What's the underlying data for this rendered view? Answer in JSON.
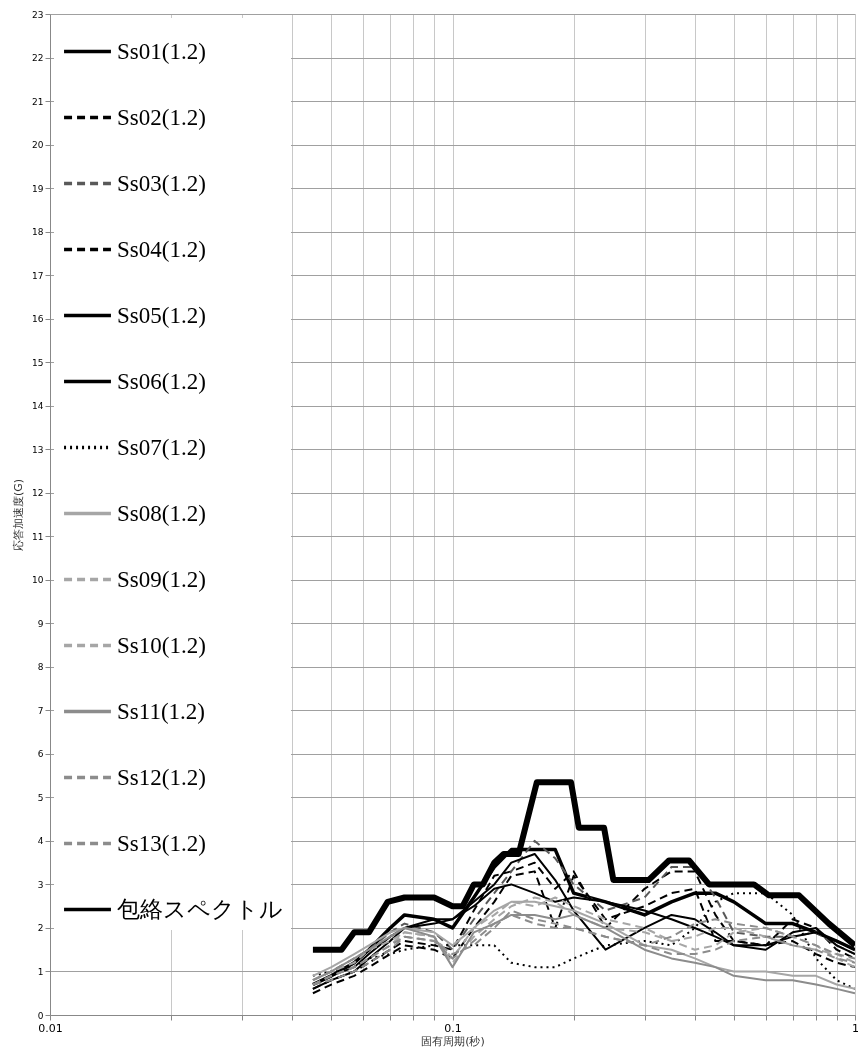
{
  "chart_data": {
    "type": "line",
    "xlabel": "固有周期(秒)",
    "ylabel": "応答加速度(G)",
    "log": "x",
    "grid": true,
    "legend": "top left",
    "xlim": [
      0.01,
      1
    ],
    "xticks": [
      0.01,
      {
        "value": 0.02,
        "label": null
      },
      {
        "value": 0.03,
        "label": null
      },
      {
        "value": 0.04,
        "label": null
      },
      {
        "value": 0.05,
        "label": null
      },
      {
        "value": 0.06,
        "label": null
      },
      {
        "value": 0.07,
        "label": null
      },
      {
        "value": 0.08,
        "label": null
      },
      {
        "value": 0.09,
        "label": null
      },
      0.1,
      {
        "value": 0.2,
        "label": null
      },
      {
        "value": 0.3,
        "label": null
      },
      {
        "value": 0.4,
        "label": null
      },
      {
        "value": 0.5,
        "label": null
      },
      {
        "value": 0.6,
        "label": null
      },
      {
        "value": 0.7,
        "label": null
      },
      {
        "value": 0.8,
        "label": null
      },
      {
        "value": 0.9,
        "label": null
      },
      1
    ],
    "ylim": [
      0,
      23
    ],
    "yticks": [
      0,
      1,
      2,
      3,
      4,
      5,
      6,
      7,
      8,
      9,
      10,
      11,
      12,
      13,
      14,
      15,
      16,
      17,
      18,
      19,
      20,
      21,
      22,
      23
    ],
    "x": [
      0.045,
      0.05,
      0.057,
      0.062,
      0.07,
      0.076,
      0.09,
      0.1,
      0.113,
      0.127,
      0.14,
      0.16,
      0.18,
      0.2,
      0.24,
      0.3,
      0.35,
      0.4,
      0.45,
      0.5,
      0.6,
      0.7,
      0.8,
      0.9,
      1.0
    ],
    "series": [
      {
        "name": "Ss01(1.2)",
        "color": "#000000",
        "line_style": "solid",
        "values": [
          0.7,
          0.9,
          1.2,
          1.5,
          2.0,
          2.3,
          2.2,
          2.0,
          2.7,
          3.4,
          3.8,
          3.8,
          3.8,
          2.8,
          2.6,
          2.3,
          2.6,
          2.8,
          2.8,
          2.6,
          2.1,
          2.1,
          1.9,
          1.7,
          1.5
        ]
      },
      {
        "name": "Ss02(1.2)",
        "color": "#000000",
        "line_style": "dashed",
        "values": [
          0.6,
          0.8,
          1.0,
          1.2,
          1.5,
          1.7,
          1.6,
          1.5,
          2.4,
          3.2,
          3.3,
          3.5,
          2.9,
          3.3,
          2.0,
          2.9,
          3.3,
          3.3,
          2.3,
          1.7,
          1.6,
          2.2,
          2.0,
          1.5,
          1.3
        ]
      },
      {
        "name": "Ss03(1.2)",
        "color": "#595959",
        "line_style": "dashed",
        "values": [
          0.8,
          1.0,
          1.3,
          1.5,
          1.9,
          2.1,
          1.9,
          1.5,
          2.2,
          2.8,
          3.3,
          4.0,
          3.6,
          3.0,
          2.4,
          2.7,
          3.4,
          3.4,
          2.7,
          1.9,
          1.8,
          1.8,
          1.9,
          1.6,
          1.4
        ]
      },
      {
        "name": "Ss04(1.2)",
        "color": "#000000",
        "line_style": "dashed",
        "values": [
          0.5,
          0.7,
          0.9,
          1.1,
          1.4,
          1.6,
          1.5,
          1.3,
          2.0,
          2.6,
          3.2,
          3.3,
          2.0,
          3.2,
          2.2,
          2.5,
          2.8,
          2.9,
          1.7,
          1.7,
          1.6,
          1.7,
          1.4,
          1.2,
          1.1
        ]
      },
      {
        "name": "Ss05(1.2)",
        "color": "#000000",
        "line_style": "solid",
        "values": [
          0.7,
          0.9,
          1.1,
          1.4,
          1.8,
          2.0,
          2.2,
          2.2,
          2.6,
          3.0,
          3.5,
          3.7,
          3.1,
          2.4,
          1.5,
          2.0,
          2.3,
          2.2,
          1.9,
          1.6,
          1.5,
          1.9,
          2.0,
          1.6,
          1.4
        ]
      },
      {
        "name": "Ss06(1.2)",
        "color": "#000000",
        "line_style": "solid",
        "values": [
          0.6,
          0.8,
          1.0,
          1.3,
          1.7,
          2.0,
          2.1,
          2.2,
          2.5,
          2.9,
          3.0,
          2.8,
          2.6,
          2.7,
          2.6,
          2.4,
          2.2,
          2.0,
          1.8,
          1.6,
          1.6,
          1.8,
          1.9,
          1.7,
          1.5
        ]
      },
      {
        "name": "Ss07(1.2)",
        "color": "#000000",
        "line_style": "dotted",
        "values": [
          0.9,
          1.0,
          1.1,
          1.3,
          1.4,
          1.5,
          1.6,
          1.6,
          1.6,
          1.6,
          1.2,
          1.1,
          1.1,
          1.3,
          1.6,
          1.7,
          1.6,
          2.0,
          2.6,
          2.8,
          2.8,
          2.3,
          1.3,
          0.8,
          0.6
        ]
      },
      {
        "name": "Ss08(1.2)",
        "color": "#a6a6a6",
        "line_style": "solid",
        "values": [
          0.9,
          1.1,
          1.4,
          1.6,
          1.9,
          2.0,
          1.9,
          1.6,
          2.0,
          2.4,
          2.6,
          2.6,
          2.5,
          2.4,
          2.1,
          1.6,
          1.5,
          1.3,
          1.1,
          1.0,
          1.0,
          0.9,
          0.9,
          0.7,
          0.6
        ]
      },
      {
        "name": "Ss09(1.2)",
        "color": "#a6a6a6",
        "line_style": "dashed",
        "values": [
          0.8,
          1.0,
          1.2,
          1.5,
          1.7,
          1.9,
          1.8,
          1.3,
          2.0,
          2.3,
          2.6,
          2.5,
          2.7,
          2.5,
          2.2,
          2.0,
          1.7,
          1.8,
          2.0,
          2.0,
          1.8,
          1.6,
          1.5,
          1.4,
          1.2
        ]
      },
      {
        "name": "Ss10(1.2)",
        "color": "#a6a6a6",
        "line_style": "dashed",
        "values": [
          0.7,
          0.9,
          1.1,
          1.3,
          1.6,
          1.9,
          1.8,
          1.2,
          1.8,
          2.2,
          2.5,
          2.7,
          2.6,
          2.3,
          2.0,
          1.9,
          1.7,
          1.5,
          1.6,
          1.9,
          2.0,
          1.8,
          1.6,
          1.3,
          1.1
        ]
      },
      {
        "name": "Ss11(1.2)",
        "color": "#8c8c8c",
        "line_style": "solid",
        "values": [
          0.8,
          1.0,
          1.3,
          1.5,
          1.8,
          2.0,
          1.8,
          1.1,
          1.9,
          2.1,
          2.3,
          2.3,
          2.2,
          2.3,
          2.0,
          1.5,
          1.3,
          1.2,
          1.1,
          0.9,
          0.8,
          0.8,
          0.7,
          0.6,
          0.5
        ]
      },
      {
        "name": "Ss12(1.2)",
        "color": "#8c8c8c",
        "line_style": "dashed",
        "values": [
          0.7,
          0.8,
          1.0,
          1.2,
          1.5,
          1.8,
          1.7,
          1.4,
          1.6,
          2.0,
          2.4,
          2.2,
          2.1,
          2.0,
          1.8,
          1.6,
          1.4,
          1.4,
          1.5,
          1.7,
          1.8,
          1.6,
          1.5,
          1.3,
          1.2
        ]
      },
      {
        "name": "Ss13(1.2)",
        "color": "#8c8c8c",
        "line_style": "dashed",
        "values": [
          0.7,
          0.9,
          1.1,
          1.3,
          1.6,
          1.8,
          1.7,
          1.3,
          1.7,
          2.1,
          2.3,
          2.1,
          2.0,
          2.0,
          1.8,
          1.6,
          1.8,
          2.1,
          2.2,
          2.1,
          2.0,
          1.8,
          1.6,
          1.4,
          1.3
        ]
      },
      {
        "name": "包絡スペクトル",
        "color": "#000000",
        "line_style": "solid",
        "x": [
          0.045,
          0.053,
          0.057,
          0.062,
          0.069,
          0.076,
          0.09,
          0.1,
          0.106,
          0.113,
          0.119,
          0.127,
          0.134,
          0.146,
          0.162,
          0.197,
          0.206,
          0.238,
          0.251,
          0.307,
          0.345,
          0.387,
          0.434,
          0.561,
          0.611,
          0.726,
          0.861,
          1.0
        ],
        "values": [
          1.5,
          1.5,
          1.9,
          1.9,
          2.6,
          2.7,
          2.7,
          2.5,
          2.5,
          3.0,
          3.0,
          3.5,
          3.7,
          3.7,
          5.35,
          5.35,
          4.3,
          4.3,
          3.1,
          3.1,
          3.55,
          3.55,
          3.0,
          3.0,
          2.75,
          2.75,
          2.1,
          1.6
        ]
      }
    ]
  }
}
